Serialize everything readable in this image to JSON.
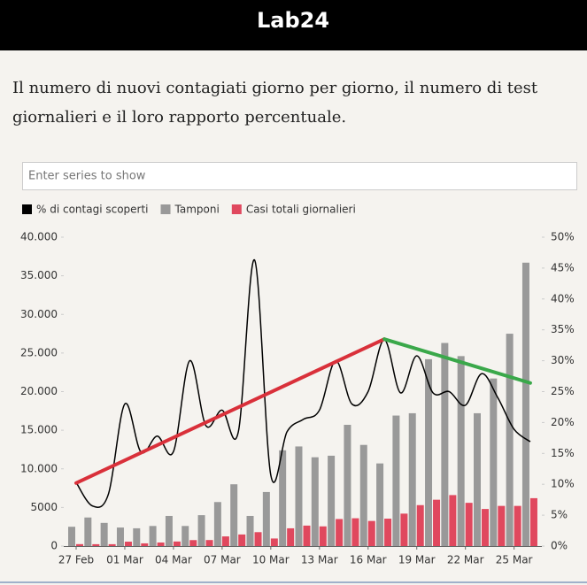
{
  "header": {
    "logo": "Lab24"
  },
  "chart_data": {
    "type": "bar",
    "title_lines": [
      "Il numero di nuovi contagiati giorno per giorno, il numero di test",
      "giornalieri e il loro rapporto percentuale."
    ],
    "search_placeholder": "Enter series to show",
    "categories": [
      "27 Feb",
      null,
      null,
      "01 Mar",
      null,
      null,
      "04 Mar",
      null,
      null,
      "07 Mar",
      null,
      null,
      "10 Mar",
      null,
      null,
      "13 Mar",
      null,
      null,
      "16 Mar",
      null,
      null,
      "19 Mar",
      null,
      null,
      "22 Mar",
      null,
      null,
      "25 Mar",
      null
    ],
    "series": [
      {
        "name": "% di contagi scoperti",
        "type": "line",
        "axis": "y2",
        "color": "#000000",
        "values": [
          10.3,
          6.5,
          8.5,
          23,
          15.2,
          17.8,
          15.3,
          30,
          19.5,
          22,
          18.5,
          46.3,
          11.5,
          18.5,
          20.5,
          22,
          30,
          23,
          25,
          33.4,
          24.8,
          30.8,
          24.8,
          25,
          22.8,
          27.9,
          24,
          18.9,
          16.9
        ]
      },
      {
        "name": "Tamponi",
        "type": "bar",
        "color": "#999999",
        "values": [
          2500,
          3700,
          3000,
          2400,
          2300,
          2600,
          3900,
          2600,
          4000,
          5700,
          8000,
          3900,
          7000,
          12400,
          12900,
          11500,
          11700,
          15700,
          13100,
          10700,
          16900,
          17200,
          24200,
          26300,
          24600,
          17200,
          21700,
          27500,
          36700
        ]
      },
      {
        "name": "Casi totali giornalieri",
        "type": "bar",
        "color": "#e0485e",
        "values": [
          250,
          240,
          240,
          570,
          350,
          460,
          590,
          770,
          780,
          1250,
          1500,
          1800,
          980,
          2300,
          2650,
          2550,
          3500,
          3600,
          3250,
          3550,
          4200,
          5300,
          6000,
          6600,
          5600,
          4800,
          5200,
          5200,
          6200
        ]
      }
    ],
    "trend_lines": [
      {
        "color": "#d9303a",
        "from": {
          "index": 0,
          "value": 10.2
        },
        "to": {
          "index": 19,
          "value": 33.5
        }
      },
      {
        "color": "#3aa84a",
        "from": {
          "index": 19,
          "value": 33.5
        },
        "to": {
          "index": 28,
          "value": 26.4
        }
      }
    ],
    "ylim": [
      0,
      40000
    ],
    "yticks": [
      0,
      5000,
      {
        "value": 10000,
        "label": "10.000"
      },
      {
        "value": 15000,
        "label": "15.000"
      },
      {
        "value": 20000,
        "label": "20.000"
      },
      {
        "value": 25000,
        "label": "25.000"
      },
      {
        "value": 30000,
        "label": "30.000"
      },
      {
        "value": 35000,
        "label": "35.000"
      },
      {
        "value": 40000,
        "label": "40.000"
      }
    ],
    "y2lim": [
      0,
      50
    ],
    "y2ticks": [
      {
        "value": 0,
        "label": "0%"
      },
      {
        "value": 5,
        "label": "5%"
      },
      {
        "value": 10,
        "label": "10%"
      },
      {
        "value": 15,
        "label": "15%"
      },
      {
        "value": 20,
        "label": "20%"
      },
      {
        "value": 25,
        "label": "25%"
      },
      {
        "value": 30,
        "label": "30%"
      },
      {
        "value": 35,
        "label": "35%"
      },
      {
        "value": 40,
        "label": "40%"
      },
      {
        "value": 45,
        "label": "45%"
      },
      {
        "value": 50,
        "label": "50%"
      }
    ]
  }
}
